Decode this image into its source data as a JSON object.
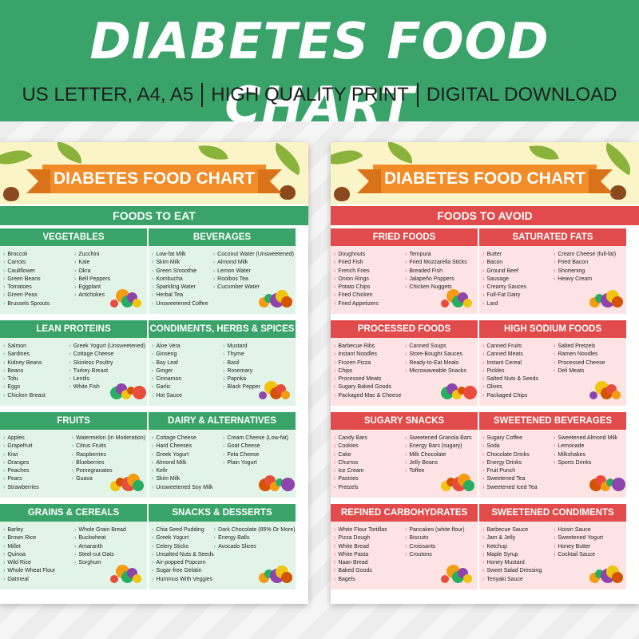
{
  "banner": {
    "title": "DIABETES FOOD CHART",
    "tags": [
      "US LETTER, A4, A5",
      "HIGH QUALITY PRINT",
      "DIGITAL DOWNLOAD"
    ],
    "color": "#3aa36a"
  },
  "sheet_title": "DIABETES FOOD CHART",
  "eat": {
    "heading": "FOODS TO EAT",
    "color": "#3aa36a",
    "cards": [
      {
        "title": "VEGETABLES",
        "col1": [
          "Broccoli",
          "Carrots",
          "Cauliflower",
          "Green Beans",
          "Tomatoes",
          "Green Peas",
          "Brussels Sprouts"
        ],
        "col2": [
          "Zucchini",
          "Kale",
          "Okra",
          "Bell Peppers",
          "Eggplant",
          "Artichokes"
        ],
        "icon": "vegetables-icon"
      },
      {
        "title": "BEVERAGES",
        "col1": [
          "Low-fat Milk",
          "Skim Milk",
          "Green Smoothie",
          "Kombucha",
          "Sparkling Water",
          "Herbal Tea",
          "Unsweetened Coffee"
        ],
        "col2": [
          "Coconut Water (Unsweetened)",
          "Almond Milk",
          "Lemon Water",
          "Rooibos Tea",
          "Cucumber Water"
        ],
        "icon": "drinks-icon"
      },
      {
        "title": "LEAN PROTEINS",
        "col1": [
          "Salmon",
          "Sardines",
          "Kidney Beans",
          "Beans",
          "Tofu",
          "Eggs",
          "Chicken Breast"
        ],
        "col2": [
          "Greek Yogurt (Unsweetened)",
          "Cottage Cheese",
          "Skinless Poultry",
          "Turkey Breast",
          "Lentils",
          "White Fish"
        ],
        "icon": "protein-icon"
      },
      {
        "title": "CONDIMENTS, HERBS & SPICES",
        "col1": [
          "Aloe Vera",
          "Ginseng",
          "Bay Leaf",
          "Ginger",
          "Cinnamon",
          "Garlic",
          "Hot Sauce"
        ],
        "col2": [
          "Mustard",
          "Thyme",
          "Basil",
          "Rosemary",
          "Paprika",
          "Black Pepper"
        ],
        "icon": "spices-icon"
      },
      {
        "title": "FRUITS",
        "col1": [
          "Apples",
          "Grapefruit",
          "Kiwi",
          "Oranges",
          "Peaches",
          "Pears",
          "Strawberries"
        ],
        "col2": [
          "Watermelon (In Moderation)",
          "Citrus Fruits",
          "Raspberries",
          "Blueberries",
          "Pomegranates",
          "Guava"
        ],
        "icon": "fruits-icon"
      },
      {
        "title": "DAIRY & ALTERNATIVES",
        "col1": [
          "Cottage Cheese",
          "Hard Cheeses",
          "Greek Yogurt",
          "Almond Milk",
          "Kefir",
          "Skim Milk",
          "Unsweetened Soy Milk"
        ],
        "col2": [
          "Cream Cheese (Low-fat)",
          "Goat Cheese",
          "Feta Cheese",
          "Plain Yogurt"
        ],
        "icon": "dairy-icon"
      },
      {
        "title": "GRAINS & CEREALS",
        "col1": [
          "Barley",
          "Brown Rice",
          "Millet",
          "Quinoa",
          "Wild Rice",
          "Whole Wheat Flour",
          "Oatmeal"
        ],
        "col2": [
          "Whole Grain Bread",
          "Buckwheat",
          "Amaranth",
          "Steel-cut Oats",
          "Sorghum"
        ],
        "icon": "grains-icon"
      },
      {
        "title": "SNACKS & DESSERTS",
        "col1": [
          "Chia Seed Pudding",
          "Greek Yogurt",
          "Celery Sticks",
          "Unsalted Nuts & Seeds",
          "Air-popped Popcorn",
          "Sugar-free Gelatin",
          "Hummus With Veggies"
        ],
        "col2": [
          "Dark Chocolate (85% Or More)",
          "Energy Balls",
          "Avocado Slices"
        ],
        "icon": "snacks-icon"
      }
    ]
  },
  "avoid": {
    "heading": "FOODS TO AVOID",
    "color": "#e14b4b",
    "cards": [
      {
        "title": "FRIED FOODS",
        "col1": [
          "Doughnuts",
          "Fried Fish",
          "French Fries",
          "Onion Rings",
          "Potato Chips",
          "Fried Chicken",
          "Fried Appetizers"
        ],
        "col2": [
          "Tempura",
          "Fried Mozzarella Sticks",
          "Breaded Fish",
          "Jalapeño Poppers",
          "Chicken Nuggets"
        ],
        "icon": "fried-food-icon"
      },
      {
        "title": "SATURATED FATS",
        "col1": [
          "Butter",
          "Bacon",
          "Ground Beef",
          "Sausage",
          "Creamy Sauces",
          "Full-Fat Dairy",
          "Lard"
        ],
        "col2": [
          "Cream Cheese (full-fat)",
          "Fried Bacon",
          "Shortening",
          "Heavy Cream"
        ],
        "icon": "fats-icon"
      },
      {
        "title": "PROCESSED FOODS",
        "col1": [
          "Barbecue Ribs",
          "Instant Noodles",
          "Frozen Pizza",
          "Chips",
          "Processed Meats",
          "Sugary Baked Goods",
          "Packaged Mac & Cheese"
        ],
        "col2": [
          "Canned Soups",
          "Store-Bought Sauces",
          "Ready-to-Eat Meals",
          "Microwaveable Snacks"
        ],
        "icon": "processed-food-icon"
      },
      {
        "title": "HIGH SODIUM FOODS",
        "col1": [
          "Canned Fruits",
          "Canned Meats",
          "Instant Cereal",
          "Pickles",
          "Salted Nuts & Seeds",
          "Olives",
          "Packaged Chips"
        ],
        "col2": [
          "Salted Pretzels",
          "Ramen Noodles",
          "Processed Cheese",
          "Deli Meats"
        ],
        "icon": "sodium-icon"
      },
      {
        "title": "SUGARY SNACKS",
        "col1": [
          "Candy Bars",
          "Cookies",
          "Cake",
          "Churros",
          "Ice Cream",
          "Pastries",
          "Pretzels"
        ],
        "col2": [
          "Sweetened Granola Bars",
          "Energy Bars (sugary)",
          "Milk Chocolate",
          "Jelly Beans",
          "Toffee"
        ],
        "icon": "sweets-icon"
      },
      {
        "title": "SWEETENED BEVERAGES",
        "col1": [
          "Sugary Coffee",
          "Soda",
          "Chocolate Drinks",
          "Energy Drinks",
          "Fruit Punch",
          "Sweetened Tea",
          "Sweetened Iced Tea"
        ],
        "col2": [
          "Sweetened Almond Milk",
          "Lemonade",
          "Milkshakes",
          "Sports Drinks"
        ],
        "icon": "sweet-drinks-icon"
      },
      {
        "title": "REFINED CARBOHYDRATES",
        "col1": [
          "White Flour Tortillas",
          "Pizza Dough",
          "White Bread",
          "White Pasta",
          "Naan Bread",
          "Baked Goods",
          "Bagels"
        ],
        "col2": [
          "Pancakes (white flour)",
          "Biscuits",
          "Croissants",
          "Croutons"
        ],
        "icon": "bread-icon"
      },
      {
        "title": "SWEETENED CONDIMENTS",
        "col1": [
          "Barbecue Sauce",
          "Jam & Jelly",
          "Ketchup",
          "Maple Syrup",
          "Honey Mustard",
          "Sweet Salad Dressing",
          "Teriyaki Sauce"
        ],
        "col2": [
          "Hoisin Sauce",
          "Sweetened Yogurt",
          "Honey Butter",
          "Cocktail Sauce"
        ],
        "icon": "condiments-icon"
      }
    ]
  }
}
